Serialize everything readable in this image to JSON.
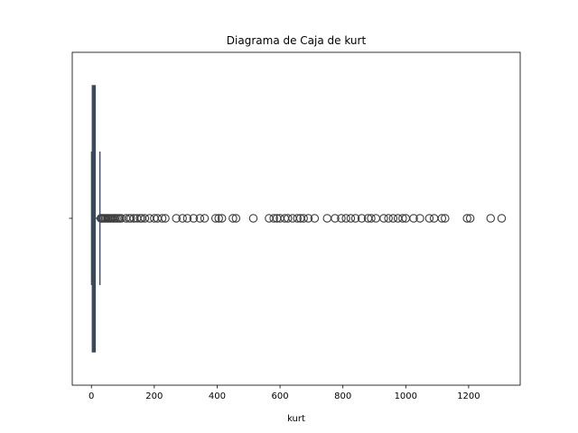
{
  "chart_data": {
    "type": "boxplot",
    "orientation": "horizontal",
    "title": "Diagrama de Caja de kurt",
    "xlabel": "kurt",
    "ylabel": "",
    "xlim": [
      -61,
      1364
    ],
    "xticks": [
      0,
      200,
      400,
      600,
      800,
      1000,
      1200
    ],
    "grid": false,
    "box": {
      "min": 0.5,
      "q1": 3,
      "median": 7,
      "q3": 12,
      "whisker_low": 0.5,
      "whisker_high": 27
    },
    "outliers": [
      30,
      33,
      36,
      40,
      44,
      48,
      52,
      56,
      60,
      65,
      70,
      75,
      80,
      85,
      90,
      95,
      110,
      120,
      125,
      135,
      145,
      155,
      160,
      170,
      185,
      200,
      210,
      225,
      235,
      270,
      290,
      305,
      325,
      345,
      360,
      395,
      405,
      415,
      450,
      460,
      515,
      565,
      580,
      590,
      600,
      615,
      625,
      640,
      655,
      665,
      675,
      690,
      710,
      750,
      775,
      795,
      810,
      825,
      840,
      860,
      880,
      890,
      905,
      930,
      945,
      960,
      975,
      990,
      1000,
      1025,
      1045,
      1075,
      1090,
      1115,
      1125,
      1195,
      1205,
      1270,
      1305
    ],
    "color": "#3b4b5a",
    "outlier_color": "#3d3d3d"
  }
}
